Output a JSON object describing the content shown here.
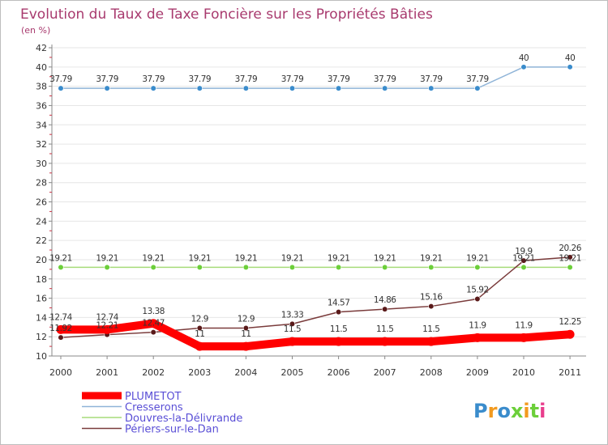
{
  "chart_data": {
    "type": "line",
    "title": "Evolution du Taux de Taxe Foncière sur les Propriétés Bâties",
    "unit_label": "(en %)",
    "xlabel": "",
    "ylabel": "",
    "ylim": [
      10,
      42
    ],
    "y_ticks": [
      "10",
      "12",
      "14",
      "16",
      "18",
      "20",
      "22",
      "24",
      "26",
      "28",
      "30",
      "32",
      "34",
      "36",
      "38",
      "40",
      "42"
    ],
    "categories": [
      "2000",
      "2001",
      "2002",
      "2003",
      "2004",
      "2005",
      "2006",
      "2007",
      "2008",
      "2009",
      "2010",
      "2011"
    ],
    "series": [
      {
        "name": "PLUMETOT",
        "color": "#ff0000",
        "values": [
          12.74,
          12.74,
          13.38,
          11,
          11,
          11.5,
          11.5,
          11.5,
          11.5,
          11.9,
          11.9,
          12.25
        ],
        "labels": [
          "12.74",
          "12.74",
          "13.38",
          "11",
          "11",
          "11.5",
          "11.5",
          "11.5",
          "11.5",
          "11.9",
          "11.9",
          "12.25"
        ]
      },
      {
        "name": "Cresserons",
        "color": "#8fb4d8",
        "marker_color": "#3a8ccc",
        "values": [
          37.79,
          37.79,
          37.79,
          37.79,
          37.79,
          37.79,
          37.79,
          37.79,
          37.79,
          37.79,
          40,
          40
        ],
        "labels": [
          "37.79",
          "37.79",
          "37.79",
          "37.79",
          "37.79",
          "37.79",
          "37.79",
          "37.79",
          "37.79",
          "37.79",
          "40",
          "40"
        ]
      },
      {
        "name": "Douvres-la-Délivrande",
        "color": "#a6dc7a",
        "marker_color": "#6ccf3a",
        "values": [
          19.21,
          19.21,
          19.21,
          19.21,
          19.21,
          19.21,
          19.21,
          19.21,
          19.21,
          19.21,
          19.21,
          19.21
        ],
        "labels": [
          "19.21",
          "19.21",
          "19.21",
          "19.21",
          "19.21",
          "19.21",
          "19.21",
          "19.21",
          "19.21",
          "19.21",
          "19.21",
          "19.21"
        ]
      },
      {
        "name": "Périers-sur-le-Dan",
        "color": "#7a3b3b",
        "marker_color": "#5a1a1a",
        "values": [
          11.92,
          12.21,
          12.47,
          12.9,
          12.9,
          13.33,
          14.57,
          14.86,
          15.16,
          15.92,
          19.9,
          20.26
        ],
        "labels": [
          "11.92",
          "12.21",
          "12.47",
          "12.9",
          "12.9",
          "13.33",
          "14.57",
          "14.86",
          "15.16",
          "15.92",
          "19.9",
          "20.26"
        ]
      }
    ],
    "legend": {
      "placement": "bottom-left",
      "entries": [
        "PLUMETOT",
        "Cresserons",
        "Douvres-la-Délivrande",
        "Périers-sur-le-Dan"
      ]
    }
  },
  "branding": {
    "logo_text": "Proxiti",
    "logo_colors": [
      "#3a8ccc",
      "#f29a1f",
      "#3a8ccc",
      "#6ccf3a",
      "#f29a1f",
      "#6ccf3a",
      "#e83e8c"
    ]
  }
}
